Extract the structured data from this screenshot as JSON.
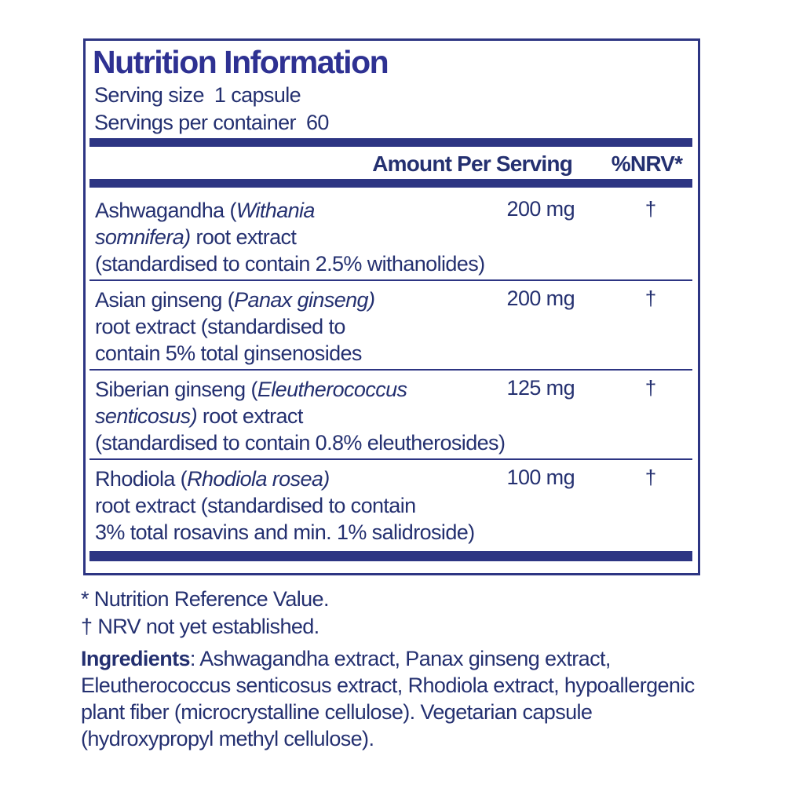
{
  "panel": {
    "title": "Nutrition Information",
    "serving": {
      "size_label": "Serving size",
      "size_value": "1 capsule",
      "per_container_label": "Servings per container",
      "per_container_value": "60"
    },
    "columns": {
      "amount": "Amount Per Serving",
      "nrv": "%NRV*"
    },
    "rows": [
      {
        "name_lines": [
          [
            {
              "t": "Ashwagandha ("
            },
            {
              "t": "Withania",
              "i": true
            }
          ],
          [
            {
              "t": "somnifera)",
              "i": true
            },
            {
              "t": " root extract"
            }
          ],
          [
            {
              "t": "(standardised to contain 2.5% withanolides)"
            }
          ]
        ],
        "amount": "200 mg",
        "nrv": "†"
      },
      {
        "name_lines": [
          [
            {
              "t": "Asian ginseng ("
            },
            {
              "t": "Panax ginseng)",
              "i": true
            }
          ],
          [
            {
              "t": "root extract (standardised to"
            }
          ],
          [
            {
              "t": "contain 5% total ginsenosides"
            }
          ]
        ],
        "amount": "200 mg",
        "nrv": "†"
      },
      {
        "name_lines": [
          [
            {
              "t": "Siberian ginseng ("
            },
            {
              "t": "Eleutherococcus",
              "i": true
            }
          ],
          [
            {
              "t": "senticosus)",
              "i": true
            },
            {
              "t": " root extract"
            }
          ],
          [
            {
              "t": "(standardised to contain 0.8% eleutherosides)"
            }
          ]
        ],
        "amount": "125 mg",
        "nrv": "†"
      },
      {
        "name_lines": [
          [
            {
              "t": "Rhodiola ("
            },
            {
              "t": "Rhodiola rosea)",
              "i": true
            }
          ],
          [
            {
              "t": "root extract (standardised to contain"
            }
          ],
          [
            {
              "t": "3% total rosavins and min. 1% salidroside)"
            }
          ]
        ],
        "amount": "100 mg",
        "nrv": "†"
      }
    ]
  },
  "footnotes": {
    "nrv_note": "* Nutrition Reference Value.",
    "dagger_note": "† NRV not yet established.",
    "ingredients_lines": [
      [
        {
          "t": "Ingredients",
          "b": true
        },
        {
          "t": ": Ashwagandha extract, Panax ginseng extract,"
        }
      ],
      [
        {
          "t": "Eleutherococcus senticosus extract, Rhodiola extract, hypoallergenic"
        }
      ],
      [
        {
          "t": "plant fiber (microcrystalline cellulose). Vegetarian capsule"
        }
      ],
      [
        {
          "t": "(hydroxypropyl methyl cellulose)."
        }
      ]
    ]
  },
  "colors": {
    "ink": "#243070",
    "bar": "#2d3583",
    "title": "#2e3192",
    "background": "#ffffff"
  }
}
